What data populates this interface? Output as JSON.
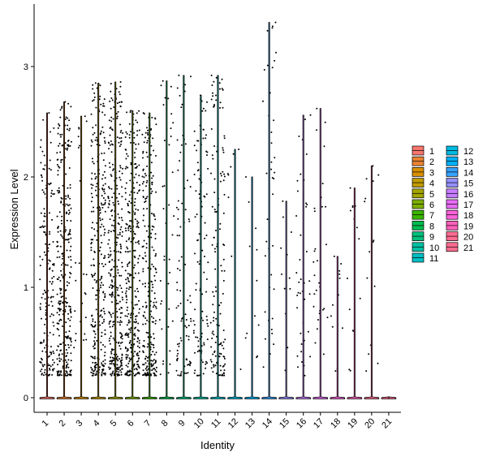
{
  "chart_data": {
    "type": "violin",
    "xlabel": "Identity",
    "ylabel": "Expression Level",
    "ylim": [
      -0.15,
      3.5
    ],
    "yticks": [
      0,
      1,
      2,
      3
    ],
    "grid": false,
    "legend_position": "right",
    "categories": [
      "1",
      "2",
      "3",
      "4",
      "5",
      "6",
      "7",
      "8",
      "9",
      "10",
      "11",
      "12",
      "13",
      "14",
      "15",
      "16",
      "17",
      "18",
      "19",
      "20",
      "21"
    ],
    "colors": [
      "#F8766D",
      "#EA8331",
      "#D89000",
      "#C09B00",
      "#A3A500",
      "#7CAE00",
      "#39B600",
      "#00BB4E",
      "#00BF7D",
      "#00C1A3",
      "#00BFC4",
      "#00BAE0",
      "#00B0F6",
      "#35A2FF",
      "#9590FF",
      "#C77CFF",
      "#E76BF3",
      "#FA62DB",
      "#FF62BC",
      "#FF6C91",
      "#FF6C91"
    ],
    "max_values": [
      2.58,
      2.68,
      2.55,
      2.85,
      2.86,
      2.6,
      2.58,
      2.87,
      2.92,
      2.74,
      2.92,
      2.25,
      2.0,
      3.4,
      1.78,
      2.56,
      2.62,
      1.28,
      1.9,
      2.1,
      0.0
    ],
    "expressing_points": [
      180,
      320,
      25,
      300,
      340,
      330,
      260,
      40,
      90,
      110,
      140,
      8,
      12,
      40,
      12,
      40,
      30,
      12,
      15,
      15,
      0
    ]
  }
}
